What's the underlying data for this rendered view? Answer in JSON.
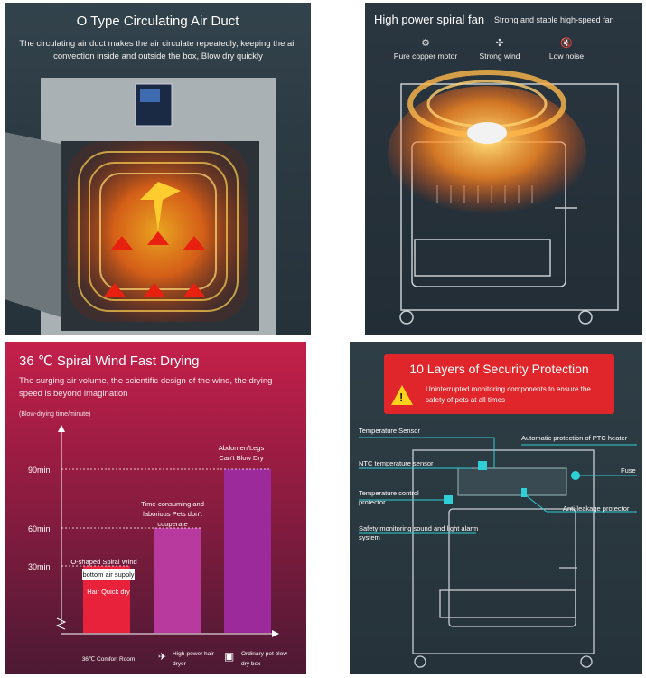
{
  "panel1": {
    "title": "O Type Circulating Air Duct",
    "description": "The circulating air duct makes the air circulate repeatedly, keeping the air convection inside and outside the box, Blow dry quickly"
  },
  "panel2": {
    "title": "High power spiral fan",
    "subtitle": "Strong and stable high-speed fan",
    "features": [
      {
        "icon": "motor-icon",
        "label": "Pure copper motor"
      },
      {
        "icon": "fan-icon",
        "label": "Strong wind"
      },
      {
        "icon": "mute-speaker-icon",
        "label": "Low noise"
      }
    ]
  },
  "panel3": {
    "title": "36 ℃ Spiral Wind Fast Drying",
    "description": "The surging air volume, the scientific design of the wind, the drying speed is beyond imagination",
    "chart_data": {
      "type": "bar",
      "ylabel": "(Blow-drying time/minute)",
      "yticks": [
        "30min",
        "60min",
        "90min"
      ],
      "categories": [
        "36℃ Comfort Room",
        "High-power hair dryer",
        "Ordinary pet blow-dry box"
      ],
      "values": [
        30,
        60,
        90
      ],
      "bar_notes": [
        "Hair Quick dry",
        "Time-consuming and laborious Pets don't cooperate",
        "Abdomen/Legs Can't Blow Dry"
      ],
      "bar_tags": [
        "O-shaped Spiral Wind",
        "bottom air supply"
      ],
      "ylim": [
        0,
        120
      ],
      "colors": [
        "#e8223a",
        "#b83a9e",
        "#9c2a9a"
      ]
    },
    "legend_icons": [
      "thermometer-icon",
      "hair-dryer-icon",
      "box-icon"
    ]
  },
  "panel4": {
    "title": "10 Layers of Security Protection",
    "warning": "Uninterrupted monitoring components to ensure the safety of pets at all times",
    "components": [
      "Temperature Sensor",
      "Automatic protection of PTC heater",
      "NTC temperature sensor",
      "Fuse",
      "Temperature control protector",
      "Anti-leakage protector",
      "Safety monitoring sound and light alarm system"
    ]
  }
}
